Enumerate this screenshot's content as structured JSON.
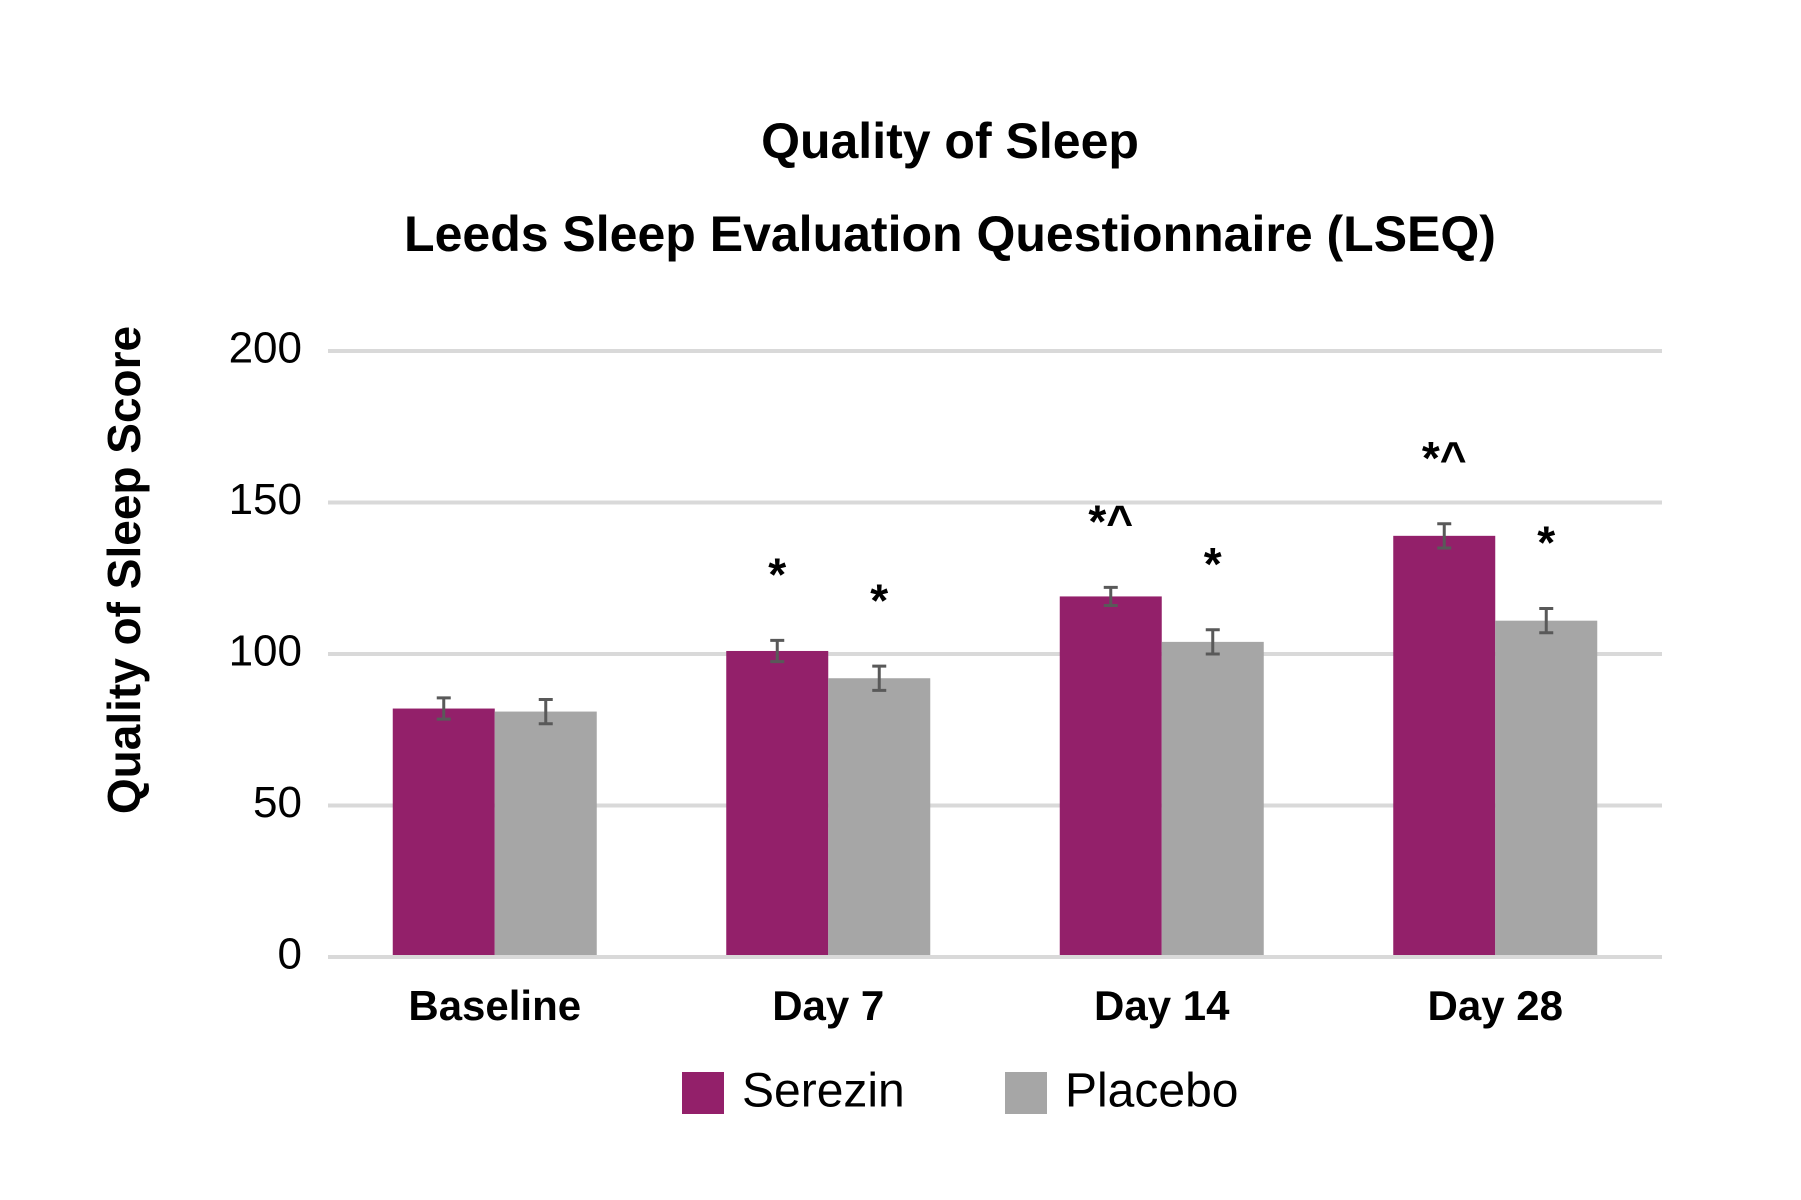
{
  "chart_data": {
    "type": "bar",
    "title": [
      "Quality of Sleep",
      "Leeds Sleep Evaluation Questionnaire (LSEQ)"
    ],
    "y_label": "Quality of Sleep Score",
    "categories": [
      "Baseline",
      "Day 7",
      "Day 14",
      "Day 28"
    ],
    "series": [
      {
        "name": "Serezin",
        "color": "#93206a",
        "values": [
          82,
          101,
          119,
          139
        ],
        "errors": [
          3.5,
          3.5,
          3,
          4
        ],
        "annotations": [
          null,
          "*",
          "*^",
          "*^"
        ]
      },
      {
        "name": "Placebo",
        "color": "#a6a6a6",
        "values": [
          81,
          92,
          104,
          111
        ],
        "errors": [
          4,
          4,
          4,
          4
        ],
        "annotations": [
          null,
          "*",
          "*",
          "*"
        ]
      }
    ],
    "ylim": [
      0,
      200
    ],
    "yticks": [
      0,
      50,
      100,
      150,
      200
    ],
    "grid": true
  }
}
